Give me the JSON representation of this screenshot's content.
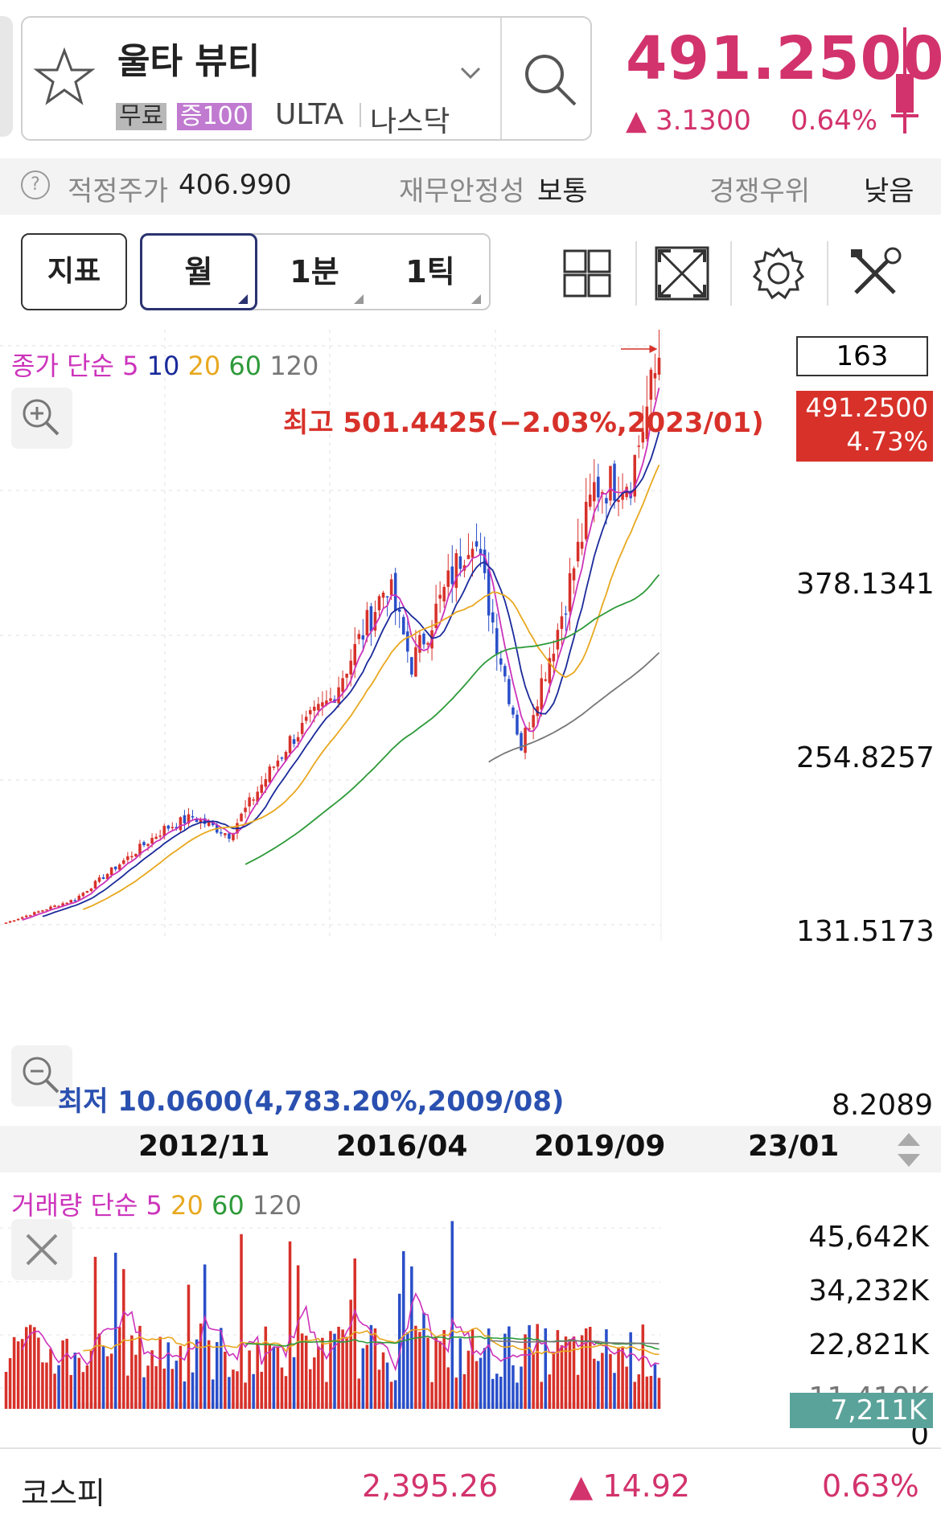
{
  "header": {
    "stock_name": "울타 뷰티",
    "tag_free": "무료",
    "tag_index": "증100",
    "ticker": "ULTA",
    "market": "나스닥",
    "price": "491.2500",
    "change": "▲ 3.1300",
    "change_pct": "0.64%"
  },
  "info_bar": {
    "fair_price_label": "적정주가",
    "fair_price_value": "406.990",
    "financial_label": "재무안정성",
    "financial_value": "보통",
    "competition_label": "경쟁우위",
    "competition_value": "낮음"
  },
  "toolbar": {
    "indicator_label": "지표",
    "period_month": "월",
    "period_minute": "1분",
    "period_tick": "1틱"
  },
  "chart": {
    "legend_title": "종가 단순",
    "legend_ma": [
      "5",
      "10",
      "20",
      "60",
      "120"
    ],
    "count": "163",
    "current_price": "491.2500",
    "current_pct": "4.73%",
    "high_note": "최고 501.4425(−2.03%,2023/01)",
    "low_note": "최저 10.0600(4,783.20%,2009/08)",
    "y_labels": [
      "378.1341",
      "254.8257",
      "131.5173",
      "8.2089"
    ],
    "x_labels": [
      "2012/11",
      "2016/04",
      "2019/09",
      "23/01"
    ]
  },
  "volume": {
    "legend_title": "거래량 단순",
    "legend_ma": [
      "5",
      "20",
      "60",
      "120"
    ],
    "y_labels": [
      "45,642K",
      "34,232K",
      "22,821K",
      "11,410K",
      "0"
    ],
    "current": "7,211K"
  },
  "bottom_bar": {
    "index_name": "코스피",
    "index_value": "2,395.26",
    "index_change": "▲ 14.92",
    "index_pct": "0.63%"
  },
  "colors": {
    "up": "#d7312a",
    "down": "#2a4fc9",
    "ma5": "#cc33bb",
    "ma10": "#1a2a9a",
    "ma20": "#e8a820",
    "ma60": "#2e9a3a",
    "ma120": "#777777",
    "accent": "#d2336c"
  },
  "chart_data": {
    "type": "candlestick",
    "y_scale": "linear",
    "x_ticks": [
      "2012/11",
      "2016/04",
      "2019/09",
      "23/01"
    ],
    "y_ticks": [
      8.2089,
      131.5173,
      254.8257,
      378.1341
    ],
    "series_close_approx": [
      {
        "x": "2009/08",
        "y": 10.06
      },
      {
        "x": "2011/01",
        "y": 30
      },
      {
        "x": "2012/11",
        "y": 90
      },
      {
        "x": "2013/06",
        "y": 100
      },
      {
        "x": "2014/03",
        "y": 85
      },
      {
        "x": "2015/06",
        "y": 165
      },
      {
        "x": "2016/04",
        "y": 200
      },
      {
        "x": "2017/06",
        "y": 300
      },
      {
        "x": "2017/12",
        "y": 230
      },
      {
        "x": "2019/03",
        "y": 345
      },
      {
        "x": "2019/09",
        "y": 250
      },
      {
        "x": "2020/03",
        "y": 160
      },
      {
        "x": "2020/12",
        "y": 260
      },
      {
        "x": "2021/09",
        "y": 380
      },
      {
        "x": "2022/06",
        "y": 390
      },
      {
        "x": "2023/01",
        "y": 491.25
      }
    ],
    "high": {
      "value": 501.4425,
      "date": "2023/01"
    },
    "low": {
      "value": 10.06,
      "date": "2009/08"
    },
    "volume_y_ticks": [
      0,
      11410,
      22821,
      34232,
      45642
    ],
    "volume_unit": "K"
  }
}
